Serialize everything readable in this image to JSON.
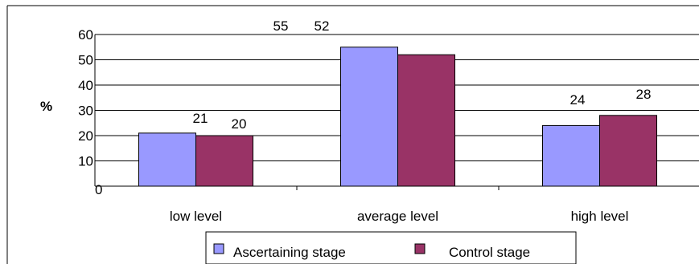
{
  "chart_data": {
    "type": "bar",
    "title": "",
    "xlabel": "",
    "ylabel": "%",
    "ylim": [
      0,
      60
    ],
    "yticks": [
      0,
      10,
      20,
      30,
      40,
      50,
      60
    ],
    "categories": [
      "low level",
      "average level",
      "high level"
    ],
    "series": [
      {
        "name": "Ascertaining stage",
        "values": [
          21,
          55,
          24
        ],
        "color": "#9999ff"
      },
      {
        "name": "Control stage",
        "values": [
          20,
          52,
          28
        ],
        "color": "#993366"
      }
    ],
    "grid": true,
    "legend_position": "bottom"
  }
}
